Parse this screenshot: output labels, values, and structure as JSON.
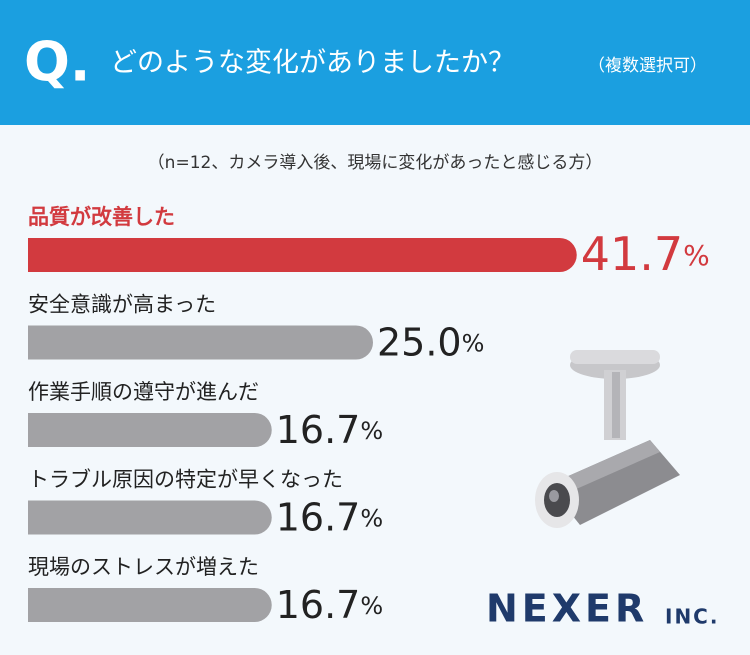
{
  "chart_data": {
    "type": "bar",
    "orientation": "horizontal",
    "question_mark": "Q.",
    "title": "どのような変化がありましたか？",
    "title_note": "（複数選択可）",
    "subtitle": "（n=12、カメラ導入後、現場に変化があったと感じる方）",
    "categories": [
      "品質が改善した",
      "安全意識が高まった",
      "作業手順の遵守が進んだ",
      "トラブル原因の特定が早くなった",
      "現場のストレスが増えた"
    ],
    "values": [
      41.7,
      25.0,
      16.7,
      16.7,
      16.7
    ],
    "value_labels": [
      "41.7",
      "25.0",
      "16.7",
      "16.7",
      "16.7"
    ],
    "unit": "%",
    "colors": [
      "#d23a3f",
      "#a2a2a5",
      "#a2a2a5",
      "#a2a2a5",
      "#a2a2a5"
    ],
    "logo": "NEXER",
    "logo_suffix": "INC."
  }
}
